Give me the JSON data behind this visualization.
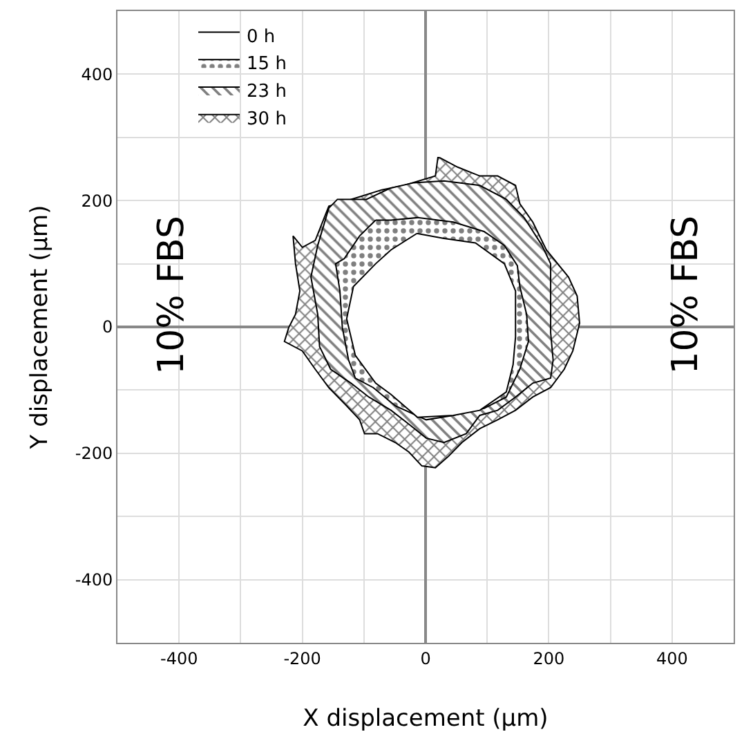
{
  "chart_data": {
    "type": "area",
    "xlabel": "X displacement (µm)",
    "ylabel": "Y displacement (µm)",
    "annotations": [
      "10% FBS",
      "10% FBS"
    ],
    "xlim": [
      -500,
      500
    ],
    "ylim": [
      -500,
      500
    ],
    "xticks": [
      {
        "value": -500,
        "label": null
      },
      -400,
      {
        "value": -300,
        "label": null
      },
      -200,
      {
        "value": -100,
        "label": null
      },
      0,
      {
        "value": 100,
        "label": null
      },
      200,
      {
        "value": 300,
        "label": null
      },
      400,
      {
        "value": 500,
        "label": null
      }
    ],
    "yticks": [
      {
        "value": -500,
        "label": null
      },
      -400,
      {
        "value": -300,
        "label": null
      },
      -200,
      {
        "value": -100,
        "label": null
      },
      0,
      {
        "value": 100,
        "label": null
      },
      200,
      {
        "value": 300,
        "label": null
      },
      400,
      {
        "value": 500,
        "label": null
      }
    ],
    "grid": true,
    "legend": "top left",
    "marker": "none",
    "line_style": "solid",
    "series": [
      {
        "name": "0 h",
        "color": "#000000",
        "x": [
          -14,
          -56,
          -81,
          -117,
          -128,
          -114,
          -81,
          -56,
          -13,
          45,
          88,
          131,
          142,
          146,
          146,
          128,
          81,
          30,
          -14
        ],
        "values": [
          148,
          122,
          100,
          64,
          13,
          -45,
          -89,
          -107,
          -143,
          -140,
          -132,
          -103,
          -60,
          -16,
          57,
          100,
          133,
          140,
          148
        ]
      },
      {
        "name": "15 h",
        "color": "#000000",
        "x": [
          -81,
          -107,
          -132,
          -146,
          -139,
          -135,
          -125,
          -114,
          -85,
          -49,
          1,
          45,
          95,
          131,
          153,
          167,
          164,
          153,
          149,
          128,
          95,
          45,
          -13,
          -56,
          -81
        ],
        "values": [
          169,
          144,
          108,
          100,
          57,
          -1,
          -52,
          -81,
          -96,
          -125,
          -147,
          -140,
          -129,
          -111,
          -67,
          -23,
          20,
          64,
          97,
          129,
          151,
          166,
          173,
          169,
          169
        ]
      },
      {
        "name": "23 h",
        "color": "#000000",
        "x": [
          -20,
          -56,
          -96,
          -143,
          -157,
          -175,
          -186,
          -175,
          -172,
          -154,
          -121,
          -92,
          -56,
          -27,
          1,
          30,
          66,
          88,
          117,
          146,
          174,
          203,
          207,
          203,
          203,
          203,
          189,
          160,
          131,
          88,
          30,
          -20
        ],
        "values": [
          228,
          220,
          202,
          202,
          188,
          129,
          79,
          20,
          -31,
          -67,
          -89,
          -111,
          -132,
          -154,
          -176,
          -183,
          -169,
          -140,
          -132,
          -111,
          -89,
          -81,
          -52,
          -9,
          35,
          100,
          129,
          173,
          202,
          224,
          231,
          228
        ]
      },
      {
        "name": "30 h",
        "color": "#000000",
        "x": [
          23,
          52,
          88,
          117,
          146,
          153,
          174,
          196,
          232,
          246,
          250,
          239,
          225,
          203,
          174,
          146,
          117,
          88,
          59,
          37,
          16,
          -6,
          -27,
          -49,
          -78,
          -99,
          -107,
          -128,
          -157,
          -179,
          -200,
          -229,
          -222,
          -211,
          -204,
          -211,
          -215,
          -200,
          -179,
          -157,
          -107,
          -71,
          -35,
          16,
          20,
          23
        ],
        "values": [
          268,
          253,
          239,
          239,
          224,
          195,
          166,
          122,
          79,
          49,
          6,
          -38,
          -67,
          -96,
          -111,
          -132,
          -147,
          -161,
          -183,
          -205,
          -223,
          -220,
          -198,
          -183,
          -169,
          -169,
          -147,
          -125,
          -96,
          -67,
          -38,
          -23,
          -1,
          20,
          57,
          100,
          144,
          126,
          137,
          191,
          206,
          217,
          224,
          239,
          268,
          268
        ]
      }
    ]
  }
}
